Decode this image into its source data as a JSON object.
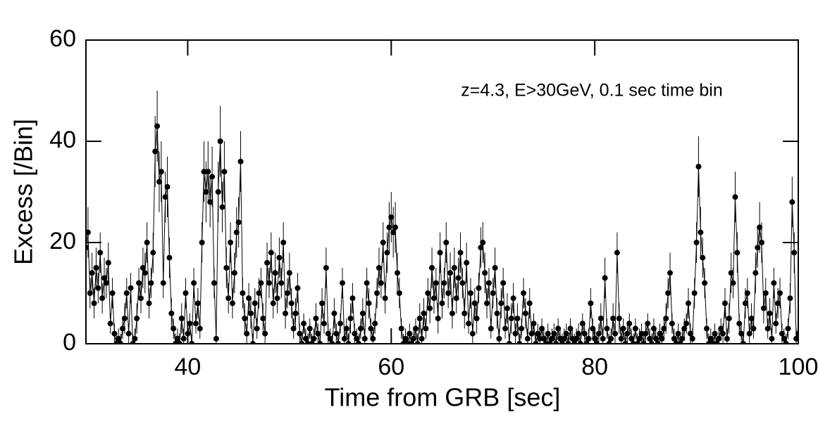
{
  "chart_data": {
    "type": "errorbar-line",
    "annotation": "z=4.3, E>30GeV, 0.1 sec time bin",
    "x_label": "Time from GRB [sec]",
    "y_label": "Excess [/Bin]",
    "xlim": [
      30,
      100
    ],
    "xticks": [
      40,
      60,
      80,
      100
    ],
    "ylim": [
      0,
      60
    ],
    "yticks": [
      0,
      20,
      40,
      60
    ],
    "color": "#000000",
    "x": [
      30,
      30.2,
      30.4,
      30.6,
      30.8,
      31,
      31.2,
      31.4,
      31.6,
      31.8,
      32,
      32.2,
      32.4,
      32.6,
      32.8,
      33,
      33.2,
      33.4,
      33.6,
      33.8,
      34,
      34.2,
      34.4,
      34.6,
      34.8,
      35,
      35.2,
      35.4,
      35.6,
      35.8,
      36,
      36.2,
      36.4,
      36.6,
      36.8,
      37,
      37.2,
      37.4,
      37.6,
      37.8,
      38,
      38.2,
      38.4,
      38.6,
      38.8,
      39,
      39.2,
      39.4,
      39.6,
      39.8,
      40,
      40.2,
      40.4,
      40.6,
      40.8,
      41,
      41.2,
      41.4,
      41.6,
      41.8,
      42,
      42.2,
      42.4,
      42.6,
      42.8,
      43,
      43.2,
      43.4,
      43.6,
      43.8,
      44,
      44.2,
      44.4,
      44.6,
      44.8,
      45,
      45.2,
      45.4,
      45.6,
      45.8,
      46,
      46.2,
      46.4,
      46.6,
      46.8,
      47,
      47.2,
      47.4,
      47.6,
      47.8,
      48,
      48.2,
      48.4,
      48.6,
      48.8,
      49,
      49.2,
      49.4,
      49.6,
      49.8,
      50,
      50.2,
      50.4,
      50.6,
      50.8,
      51,
      51.2,
      51.4,
      51.6,
      51.8,
      52,
      52.2,
      52.4,
      52.6,
      52.8,
      53,
      53.2,
      53.4,
      53.6,
      53.8,
      54,
      54.2,
      54.4,
      54.6,
      54.8,
      55,
      55.2,
      55.4,
      55.6,
      55.8,
      56,
      56.2,
      56.4,
      56.6,
      56.8,
      57,
      57.2,
      57.4,
      57.6,
      57.8,
      58,
      58.2,
      58.4,
      58.6,
      58.8,
      59,
      59.2,
      59.4,
      59.6,
      59.8,
      60,
      60.2,
      60.4,
      60.6,
      60.8,
      61,
      61.2,
      61.4,
      61.6,
      61.8,
      62,
      62.2,
      62.4,
      62.6,
      62.8,
      63,
      63.2,
      63.4,
      63.6,
      63.8,
      64,
      64.2,
      64.4,
      64.6,
      64.8,
      65,
      65.2,
      65.4,
      65.6,
      65.8,
      66,
      66.2,
      66.4,
      66.6,
      66.8,
      67,
      67.2,
      67.4,
      67.6,
      67.8,
      68,
      68.2,
      68.4,
      68.6,
      68.8,
      69,
      69.2,
      69.4,
      69.6,
      69.8,
      70,
      70.2,
      70.4,
      70.6,
      70.8,
      71,
      71.2,
      71.4,
      71.6,
      71.8,
      72,
      72.2,
      72.4,
      72.6,
      72.8,
      73,
      73.2,
      73.4,
      73.6,
      73.8,
      74,
      74.2,
      74.4,
      74.6,
      74.8,
      75,
      75.2,
      75.4,
      75.6,
      75.8,
      76,
      76.2,
      76.4,
      76.6,
      76.8,
      77,
      77.2,
      77.4,
      77.6,
      77.8,
      78,
      78.2,
      78.4,
      78.6,
      78.8,
      79,
      79.2,
      79.4,
      79.6,
      79.8,
      80,
      80.2,
      80.4,
      80.6,
      80.8,
      81,
      81.2,
      81.4,
      81.6,
      81.8,
      82,
      82.2,
      82.4,
      82.6,
      82.8,
      83,
      83.2,
      83.4,
      83.6,
      83.8,
      84,
      84.2,
      84.4,
      84.6,
      84.8,
      85,
      85.2,
      85.4,
      85.6,
      85.8,
      86,
      86.2,
      86.4,
      86.6,
      86.8,
      87,
      87.2,
      87.4,
      87.6,
      87.8,
      88,
      88.2,
      88.4,
      88.6,
      88.8,
      89,
      89.2,
      89.4,
      89.6,
      89.8,
      90,
      90.2,
      90.4,
      90.6,
      90.8,
      91,
      91.2,
      91.4,
      91.6,
      91.8,
      92,
      92.2,
      92.4,
      92.6,
      92.8,
      93,
      93.2,
      93.4,
      93.6,
      93.8,
      94,
      94.2,
      94.4,
      94.6,
      94.8,
      95,
      95.2,
      95.4,
      95.6,
      95.8,
      96,
      96.2,
      96.4,
      96.6,
      96.8,
      97,
      97.2,
      97.4,
      97.6,
      97.8,
      98,
      98.2,
      98.4,
      98.6,
      98.8,
      99,
      99.2,
      99.4,
      99.6,
      99.8,
      100
    ],
    "values": [
      19,
      22,
      10,
      14,
      8,
      15,
      11,
      18,
      9,
      13,
      12,
      16,
      4,
      10,
      2,
      0,
      1,
      0,
      3,
      5,
      10,
      2,
      11,
      0,
      1,
      5,
      12,
      9,
      15,
      14,
      20,
      8,
      12,
      18,
      38,
      43,
      32,
      34,
      12,
      29,
      31,
      17,
      6,
      3,
      0,
      1,
      0,
      5,
      1,
      10,
      2,
      4,
      0,
      12,
      4,
      8,
      3,
      20,
      34,
      30,
      34,
      28,
      33,
      12,
      1,
      30,
      40,
      27,
      34,
      15,
      9,
      20,
      8,
      14,
      22,
      24,
      36,
      10,
      5,
      2,
      9,
      6,
      0,
      8,
      3,
      10,
      12,
      5,
      2,
      16,
      12,
      18,
      8,
      14,
      9,
      17,
      12,
      20,
      6,
      10,
      14,
      8,
      3,
      6,
      11,
      2,
      0,
      4,
      1,
      0,
      3,
      0,
      1,
      5,
      2,
      0,
      8,
      4,
      15,
      2,
      1,
      0,
      6,
      2,
      0,
      4,
      12,
      1,
      3,
      0,
      5,
      9,
      2,
      1,
      0,
      3,
      6,
      1,
      12,
      8,
      3,
      1,
      4,
      10,
      15,
      12,
      20,
      9,
      18,
      23,
      25,
      22,
      23,
      14,
      10,
      3,
      0,
      1,
      0,
      2,
      0,
      1,
      3,
      0,
      5,
      1,
      6,
      3,
      10,
      7,
      15,
      9,
      12,
      5,
      18,
      8,
      12,
      20,
      10,
      14,
      6,
      15,
      9,
      13,
      18,
      12,
      6,
      16,
      4,
      10,
      2,
      8,
      5,
      11,
      19,
      20,
      14,
      8,
      12,
      3,
      10,
      15,
      6,
      1,
      8,
      12,
      3,
      7,
      0,
      5,
      9,
      2,
      5,
      0,
      3,
      10,
      6,
      1,
      8,
      2,
      4,
      0,
      2,
      1,
      3,
      1,
      0,
      2,
      0,
      1,
      2,
      0,
      3,
      1,
      0,
      1,
      2,
      0,
      3,
      1,
      0,
      1,
      2,
      0,
      4,
      2,
      0,
      1,
      8,
      3,
      1,
      0,
      2,
      5,
      1,
      13,
      3,
      0,
      1,
      5,
      2,
      18,
      5,
      1,
      3,
      0,
      2,
      4,
      1,
      0,
      3,
      0,
      1,
      2,
      0,
      2,
      4,
      1,
      0,
      3,
      1,
      0,
      2,
      1,
      3,
      5,
      10,
      14,
      4,
      1,
      0,
      2,
      0,
      1,
      3,
      4,
      8,
      2,
      1,
      10,
      20,
      35,
      22,
      17,
      12,
      3,
      0,
      1,
      0,
      2,
      0,
      1,
      3,
      2,
      8,
      1,
      5,
      14,
      12,
      29,
      18,
      4,
      2,
      0,
      8,
      10,
      2,
      5,
      3,
      14,
      19,
      23,
      20,
      7,
      10,
      3,
      6,
      1,
      12,
      4,
      8,
      10,
      2,
      1,
      0,
      3,
      9,
      28,
      18,
      1,
      2
    ],
    "errors": [
      4,
      5,
      3,
      4,
      3,
      4,
      3,
      4,
      3,
      4,
      3,
      4,
      2,
      3,
      2,
      2,
      2,
      2,
      2,
      3,
      3,
      2,
      3,
      2,
      2,
      3,
      3,
      3,
      4,
      4,
      4,
      3,
      3,
      4,
      7,
      7,
      6,
      6,
      3,
      5,
      6,
      4,
      3,
      2,
      2,
      2,
      2,
      3,
      2,
      3,
      2,
      2,
      2,
      3,
      2,
      3,
      2,
      4,
      6,
      6,
      6,
      5,
      6,
      3,
      2,
      6,
      7,
      5,
      6,
      4,
      3,
      4,
      3,
      4,
      5,
      5,
      6,
      3,
      3,
      2,
      3,
      3,
      2,
      3,
      2,
      3,
      3,
      3,
      2,
      4,
      3,
      4,
      3,
      4,
      3,
      4,
      3,
      4,
      3,
      3,
      4,
      3,
      2,
      3,
      3,
      2,
      2,
      2,
      2,
      2,
      2,
      2,
      2,
      3,
      2,
      2,
      3,
      2,
      4,
      2,
      2,
      2,
      3,
      2,
      2,
      2,
      3,
      2,
      2,
      2,
      3,
      3,
      2,
      2,
      2,
      2,
      3,
      2,
      3,
      3,
      2,
      2,
      2,
      3,
      4,
      3,
      4,
      3,
      4,
      5,
      5,
      5,
      5,
      4,
      3,
      2,
      2,
      2,
      2,
      2,
      2,
      2,
      2,
      2,
      3,
      2,
      3,
      2,
      3,
      3,
      4,
      3,
      3,
      3,
      4,
      3,
      3,
      4,
      3,
      4,
      3,
      4,
      3,
      4,
      4,
      3,
      3,
      4,
      2,
      3,
      2,
      3,
      3,
      3,
      4,
      4,
      4,
      3,
      3,
      2,
      3,
      4,
      3,
      2,
      3,
      3,
      2,
      3,
      2,
      3,
      3,
      2,
      3,
      2,
      2,
      3,
      3,
      2,
      3,
      2,
      2,
      2,
      2,
      2,
      2,
      2,
      2,
      2,
      2,
      2,
      2,
      2,
      2,
      2,
      2,
      2,
      2,
      2,
      2,
      2,
      2,
      2,
      2,
      2,
      2,
      2,
      2,
      2,
      3,
      2,
      2,
      2,
      2,
      3,
      2,
      4,
      2,
      2,
      2,
      3,
      2,
      4,
      3,
      2,
      2,
      2,
      2,
      2,
      2,
      2,
      2,
      2,
      2,
      2,
      2,
      2,
      2,
      2,
      2,
      2,
      2,
      2,
      2,
      2,
      2,
      3,
      3,
      4,
      2,
      2,
      2,
      2,
      2,
      2,
      2,
      2,
      3,
      2,
      2,
      3,
      4,
      6,
      5,
      4,
      3,
      2,
      2,
      2,
      2,
      2,
      2,
      2,
      2,
      2,
      3,
      2,
      3,
      4,
      3,
      5,
      4,
      2,
      2,
      2,
      3,
      3,
      2,
      3,
      2,
      4,
      4,
      5,
      4,
      3,
      3,
      2,
      3,
      2,
      3,
      2,
      3,
      3,
      2,
      2,
      2,
      2,
      3,
      5,
      4,
      2,
      2
    ]
  }
}
